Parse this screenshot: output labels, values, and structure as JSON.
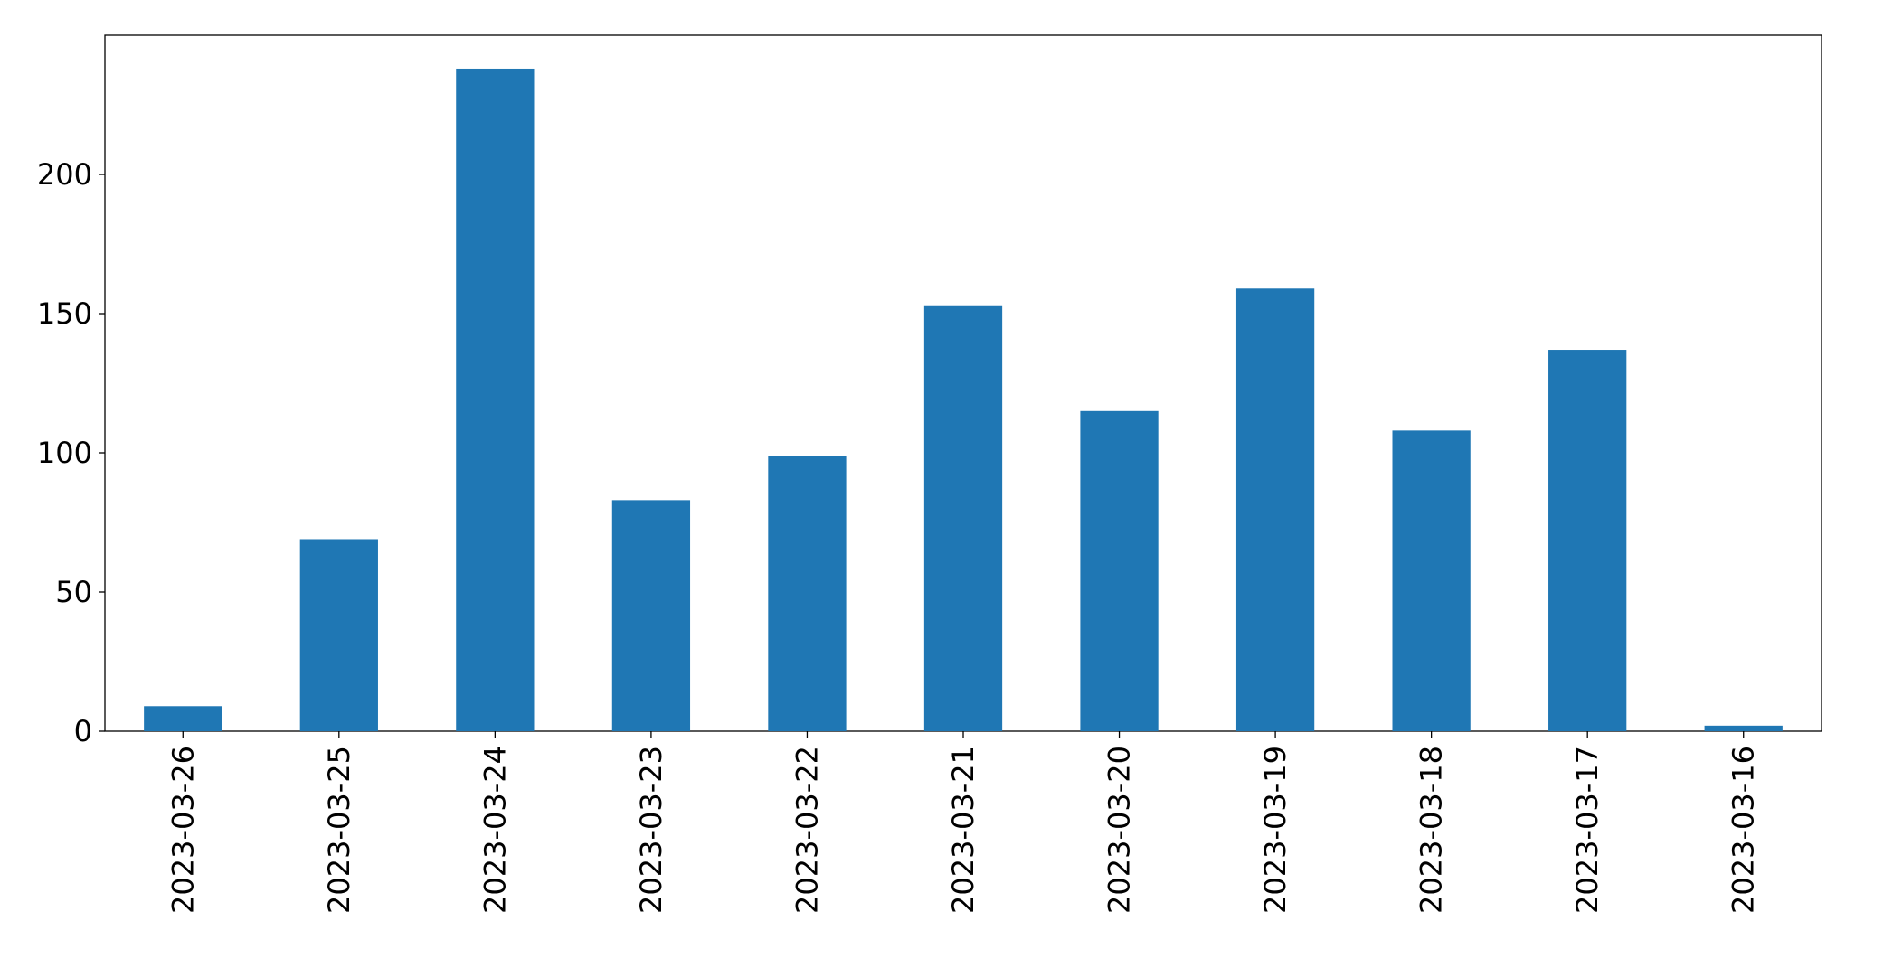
{
  "chart_data": {
    "type": "bar",
    "categories": [
      "2023-03-26",
      "2023-03-25",
      "2023-03-24",
      "2023-03-23",
      "2023-03-22",
      "2023-03-21",
      "2023-03-20",
      "2023-03-19",
      "2023-03-18",
      "2023-03-17",
      "2023-03-16"
    ],
    "values": [
      9,
      69,
      238,
      83,
      99,
      153,
      115,
      159,
      108,
      137,
      2
    ],
    "color": "#1f77b4",
    "ylim": [
      0,
      250
    ],
    "yticks": [
      0,
      50,
      100,
      150,
      200
    ],
    "grid": false
  }
}
